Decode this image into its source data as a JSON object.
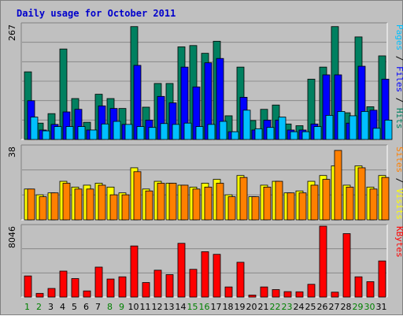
{
  "chart_data": {
    "title": "Daily usage for October 2011",
    "days": [
      "1",
      "2",
      "3",
      "4",
      "5",
      "6",
      "7",
      "8",
      "9",
      "10",
      "11",
      "12",
      "13",
      "14",
      "15",
      "16",
      "17",
      "18",
      "19",
      "20",
      "21",
      "22",
      "23",
      "24",
      "25",
      "26",
      "27",
      "28",
      "29",
      "30",
      "31"
    ],
    "weekend_days": [
      "1",
      "2",
      "8",
      "9",
      "15",
      "16",
      "22",
      "23",
      "29",
      "30"
    ],
    "colors": {
      "title": "#0000cc",
      "hits": "#008060",
      "files": "#0000ff",
      "pages": "#00c0ff",
      "visits": "#ffff00",
      "sites": "#ff8000",
      "kbytes": "#ff0000",
      "weekday_label": "#000000",
      "weekend_label": "#008000"
    },
    "panels": [
      {
        "type": "bar",
        "ymax_label": "267",
        "ymax": 267,
        "series_labels": [
          "Pages",
          "Files",
          "Hits"
        ],
        "series": [
          {
            "name": "Hits",
            "values": [
              157,
              38,
              60,
              210,
              95,
              40,
              105,
              95,
              72,
              262,
              75,
              130,
              130,
              215,
              218,
              200,
              228,
              55,
              168,
              44,
              70,
              80,
              36,
              32,
              140,
              168,
              262,
              62,
              238,
              76,
              194
            ]
          },
          {
            "name": "Files",
            "values": [
              90,
              22,
              35,
              64,
              70,
              22,
              78,
              72,
              35,
              172,
              45,
              100,
              85,
              168,
              122,
              178,
              188,
              18,
              98,
              22,
              45,
              45,
              22,
              22,
              36,
              150,
              150,
              38,
              170,
              68,
              140
            ]
          },
          {
            "name": "Pages",
            "values": [
              52,
              20,
              30,
              30,
              30,
              22,
              36,
              42,
              35,
              30,
              28,
              37,
              35,
              38,
              30,
              35,
              42,
              18,
              68,
              25,
              28,
              52,
              18,
              18,
              30,
              56,
              65,
              55,
              65,
              26,
              45
            ]
          }
        ]
      },
      {
        "type": "bar",
        "ymax_label": "38",
        "ymax": 38,
        "series_labels": [
          "Sites",
          "Visits"
        ],
        "series": [
          {
            "name": "Visits",
            "values": [
              16,
              13,
              14,
              20,
              17,
              18,
              19,
              17,
              14,
              27,
              16,
              20,
              19,
              18,
              17,
              19,
              21,
              13,
              23,
              12,
              18,
              20,
              14,
              15,
              20,
              23,
              28,
              18,
              28,
              17,
              23
            ]
          },
          {
            "name": "Sites",
            "values": [
              16,
              12,
              14,
              19,
              16,
              16,
              18,
              13,
              13,
              25,
              15,
              19,
              19,
              18,
              16,
              17,
              19,
              12,
              22,
              12,
              17,
              20,
              14,
              14,
              18,
              21,
              36,
              17,
              27,
              16,
              22
            ]
          }
        ]
      },
      {
        "type": "bar",
        "ymax_label": "8046",
        "ymax": 8046,
        "series_labels": [
          "KBytes"
        ],
        "series": [
          {
            "name": "KBytes",
            "values": [
              2400,
              420,
              980,
              2950,
              2100,
              700,
              3400,
              2050,
              2300,
              5800,
              1650,
              3050,
              2550,
              6100,
              3150,
              5150,
              4850,
              1150,
              3950,
              230,
              1150,
              850,
              620,
              600,
              1450,
              8046,
              560,
              7200,
              2300,
              1750,
              4100
            ]
          }
        ]
      }
    ]
  }
}
